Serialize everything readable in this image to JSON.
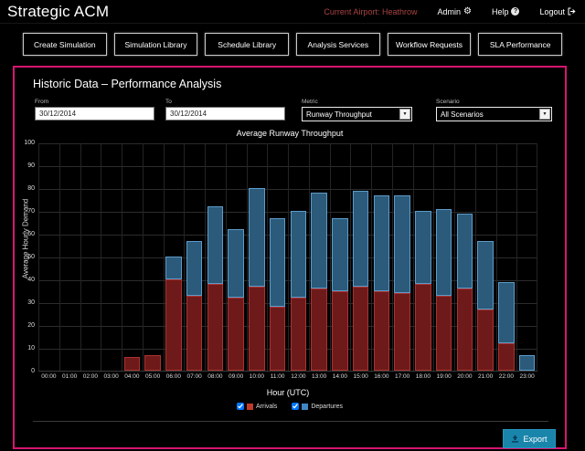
{
  "header": {
    "app_title": "Strategic ACM",
    "current_airport": "Current Airport: Heathrow",
    "admin_label": "Admin",
    "help_label": "Help",
    "help_icon_char": "?",
    "gear_icon_char": "⚙",
    "logout_label": "Logout"
  },
  "nav": {
    "items": [
      {
        "label": "Create Simulation"
      },
      {
        "label": "Simulation Library"
      },
      {
        "label": "Schedule Library"
      },
      {
        "label": "Analysis Services"
      },
      {
        "label": "Workflow Requests"
      },
      {
        "label": "SLA Performance"
      }
    ]
  },
  "panel": {
    "title": "Historic Data – Performance Analysis",
    "form": {
      "from": {
        "label": "From",
        "value": "30/12/2014"
      },
      "to": {
        "label": "To",
        "value": "30/12/2014"
      },
      "metric": {
        "label": "Metric",
        "value": "Runway Throughput"
      },
      "scenario": {
        "label": "Scenario",
        "value": "All Scenarios"
      },
      "dropdown_arrow_char": "▼"
    },
    "export_label": "Export"
  },
  "chart_data": {
    "type": "bar",
    "stacked": true,
    "title": "Average Runway Throughput",
    "xlabel": "Hour (UTC)",
    "ylabel": "Average Hourly Demand",
    "ylim": [
      0,
      100
    ],
    "ytick_step": 10,
    "grid": true,
    "legend_position": "bottom",
    "categories": [
      "00:00",
      "01:00",
      "02:00",
      "03:00",
      "04:00",
      "05:00",
      "06:00",
      "07:00",
      "08:00",
      "09:00",
      "10:00",
      "11:00",
      "12:00",
      "13:00",
      "14:00",
      "15:00",
      "16:00",
      "17:00",
      "18:00",
      "19:00",
      "20:00",
      "21:00",
      "22:00",
      "23:00"
    ],
    "series": [
      {
        "name": "Arrivals",
        "color": "#6e1a1a",
        "edge": "#a93230",
        "legend_color": "#c0392b",
        "values": [
          0,
          0,
          0,
          0,
          6,
          7,
          40,
          33,
          38,
          32,
          37,
          28,
          32,
          36,
          35,
          37,
          35,
          34,
          38,
          33,
          36,
          27,
          12,
          0
        ]
      },
      {
        "name": "Departures",
        "color": "#2b5a7a",
        "edge": "#5d9bc9",
        "legend_color": "#3f86c4",
        "values": [
          0,
          0,
          0,
          0,
          0,
          0,
          10,
          24,
          34,
          30,
          43,
          39,
          38,
          42,
          32,
          42,
          42,
          43,
          32,
          38,
          33,
          30,
          27,
          7
        ]
      }
    ]
  },
  "colors": {
    "panel_border": "#d6156f",
    "export_button": "#1a85ab",
    "airport_text": "#a94442"
  }
}
